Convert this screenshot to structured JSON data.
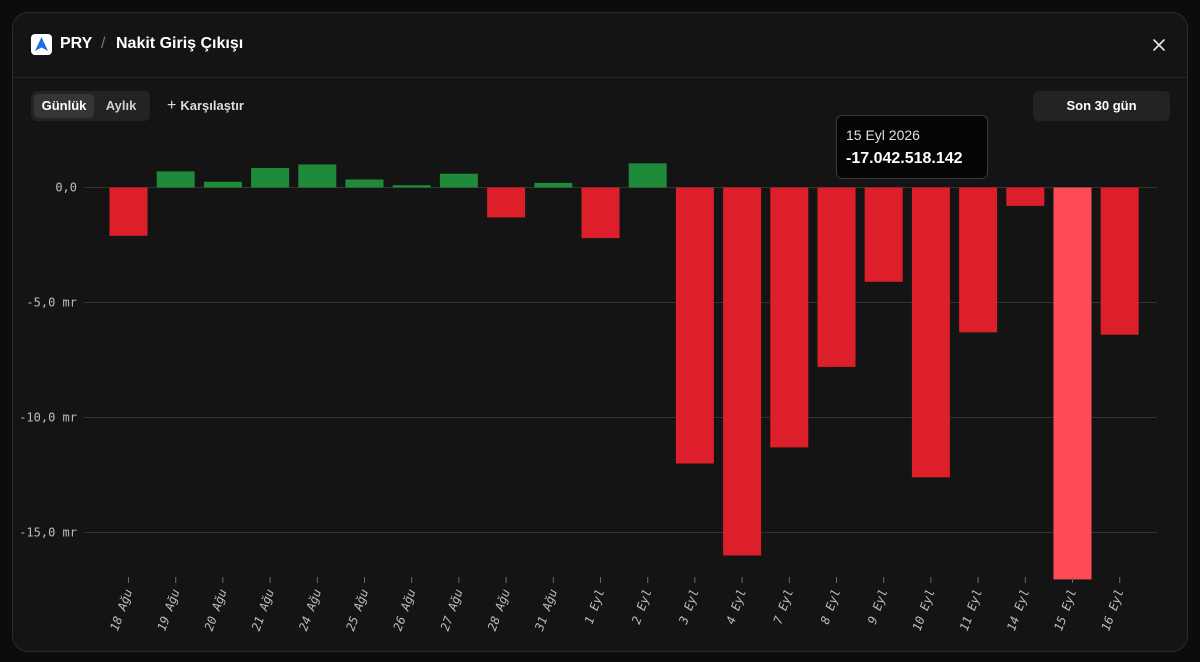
{
  "header": {
    "ticker": "PRY",
    "separator": "/",
    "title": "Nakit Giriş Çıkışı"
  },
  "toolbar": {
    "period_options": [
      {
        "label": "Günlük",
        "active": true
      },
      {
        "label": "Aylık",
        "active": false
      }
    ],
    "compare_label": "Karşılaştır",
    "range_label": "Son 30 gün"
  },
  "tooltip": {
    "date": "15 Eyl 2026",
    "value": "-17.042.518.142"
  },
  "colors": {
    "positive": "#1f8a3a",
    "negative": "#dc1f2a",
    "highlight": "#ff4b55",
    "grid": "#333333",
    "axis_text": "#bdbdbd"
  },
  "chart_data": {
    "type": "bar",
    "categories": [
      "18 Ağu",
      "19 Ağu",
      "20 Ağu",
      "21 Ağu",
      "24 Ağu",
      "25 Ağu",
      "26 Ağu",
      "27 Ağu",
      "28 Ağu",
      "31 Ağu",
      "1 Eyl",
      "2 Eyl",
      "3 Eyl",
      "4 Eyl",
      "7 Eyl",
      "8 Eyl",
      "9 Eyl",
      "10 Eyl",
      "11 Eyl",
      "14 Eyl",
      "15 Eyl",
      "16 Eyl"
    ],
    "values": [
      -2.1,
      0.7,
      0.25,
      0.85,
      1.0,
      0.35,
      0.1,
      0.6,
      -1.3,
      0.2,
      -2.2,
      1.05,
      -12.0,
      -16.0,
      -11.3,
      -7.8,
      -4.1,
      -12.6,
      -6.3,
      -0.8,
      -17.04,
      -6.4
    ],
    "highlight_index": 20,
    "y_ticks": [
      0,
      -5,
      -10,
      -15
    ],
    "y_tick_labels": [
      "0,0",
      "-5,0 mr",
      "-10,0 mr",
      "-15,0 mr"
    ],
    "ylim": [
      -17.04,
      1.05
    ],
    "grid": true
  }
}
